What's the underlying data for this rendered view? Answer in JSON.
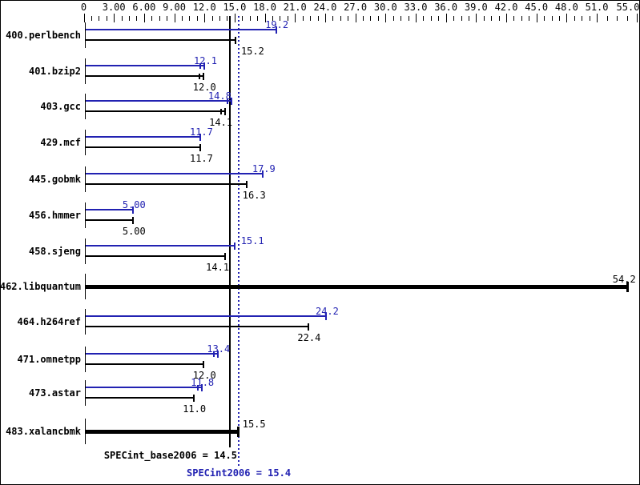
{
  "colors": {
    "peak": "#2222b2",
    "base": "#000000",
    "background": "#ffffff",
    "border": "#000000"
  },
  "summary": {
    "base_text": "SPECint_base2006 = 14.5",
    "peak_text": "SPECint2006 = 15.4",
    "base_value": 14.5,
    "peak_value": 15.4
  },
  "chart_data": {
    "type": "bar",
    "orientation": "horizontal",
    "title": "",
    "xlabel": "",
    "ylabel": "",
    "xlim": [
      0,
      55
    ],
    "grid": false,
    "legend_position": "none",
    "series_names": [
      "SPECint2006 (peak)",
      "SPECint_base2006 (base)"
    ],
    "x_major_ticks": [
      {
        "v": 0,
        "label": "0"
      },
      {
        "v": 3,
        "label": "3.00"
      },
      {
        "v": 6,
        "label": "6.00"
      },
      {
        "v": 9,
        "label": "9.00"
      },
      {
        "v": 12,
        "label": "12.0"
      },
      {
        "v": 15,
        "label": "15.0"
      },
      {
        "v": 18,
        "label": "18.0"
      },
      {
        "v": 21,
        "label": "21.0"
      },
      {
        "v": 24,
        "label": "24.0"
      },
      {
        "v": 27,
        "label": "27.0"
      },
      {
        "v": 30,
        "label": "30.0"
      },
      {
        "v": 33,
        "label": "33.0"
      },
      {
        "v": 36,
        "label": "36.0"
      },
      {
        "v": 39,
        "label": "39.0"
      },
      {
        "v": 42,
        "label": "42.0"
      },
      {
        "v": 45,
        "label": "45.0"
      },
      {
        "v": 48,
        "label": "48.0"
      },
      {
        "v": 51,
        "label": "51.0"
      },
      {
        "v": 55,
        "label": "55.0"
      }
    ],
    "reference_lines": [
      {
        "value": 14.5,
        "style": "solid",
        "color": "#000000",
        "meaning": "SPECint_base2006"
      },
      {
        "value": 15.4,
        "style": "dotted",
        "color": "#2222b2",
        "meaning": "SPECint2006"
      }
    ],
    "rows": [
      {
        "label": "400.perlbench",
        "peak": {
          "value": 19.2,
          "display": "19.2"
        },
        "base": {
          "value": 15.2,
          "display": "15.2",
          "label_dx": 20
        }
      },
      {
        "label": "401.bzip2",
        "peak": {
          "value": 12.1,
          "display": "12.1",
          "ticks": 2
        },
        "base": {
          "value": 12.0,
          "display": "12.0",
          "ticks": 2
        }
      },
      {
        "label": "403.gcc",
        "peak": {
          "value": 14.8,
          "display": "14.8",
          "ticks": 2,
          "label_dx": -16
        },
        "base": {
          "value": 14.1,
          "display": "14.1",
          "ticks": 2,
          "label_dx": -6
        }
      },
      {
        "label": "429.mcf",
        "peak": {
          "value": 11.7,
          "display": "11.7"
        },
        "base": {
          "value": 11.7,
          "display": "11.7"
        }
      },
      {
        "label": "445.gobmk",
        "peak": {
          "value": 17.9,
          "display": "17.9"
        },
        "base": {
          "value": 16.3,
          "display": "16.3",
          "label_dx": 8
        }
      },
      {
        "label": "456.hmmer",
        "peak": {
          "value": 5.0,
          "display": "5.00"
        },
        "base": {
          "value": 5.0,
          "display": "5.00"
        }
      },
      {
        "label": "458.sjeng",
        "peak": {
          "value": 15.1,
          "display": "15.1",
          "label_dx": 21
        },
        "base": {
          "value": 14.1,
          "display": "14.1",
          "label_dx": -10
        }
      },
      {
        "label": "462.libquantum",
        "single": {
          "value": 54.2,
          "display": "54.2",
          "label_dx": -6
        }
      },
      {
        "label": "464.h264ref",
        "peak": {
          "value": 24.2,
          "display": "24.2"
        },
        "base": {
          "value": 22.4,
          "display": "22.4"
        }
      },
      {
        "label": "471.omnetpp",
        "peak": {
          "value": 13.4,
          "display": "13.4",
          "ticks": 2
        },
        "base": {
          "value": 12.0,
          "display": "12.0"
        }
      },
      {
        "label": "473.astar",
        "peak": {
          "value": 11.8,
          "display": "11.8",
          "ticks": 2
        },
        "base": {
          "value": 11.0,
          "display": "11.0"
        }
      },
      {
        "label": "483.xalancbmk",
        "single": {
          "value": 15.5,
          "display": "15.5",
          "label_dx": 18
        }
      }
    ]
  }
}
